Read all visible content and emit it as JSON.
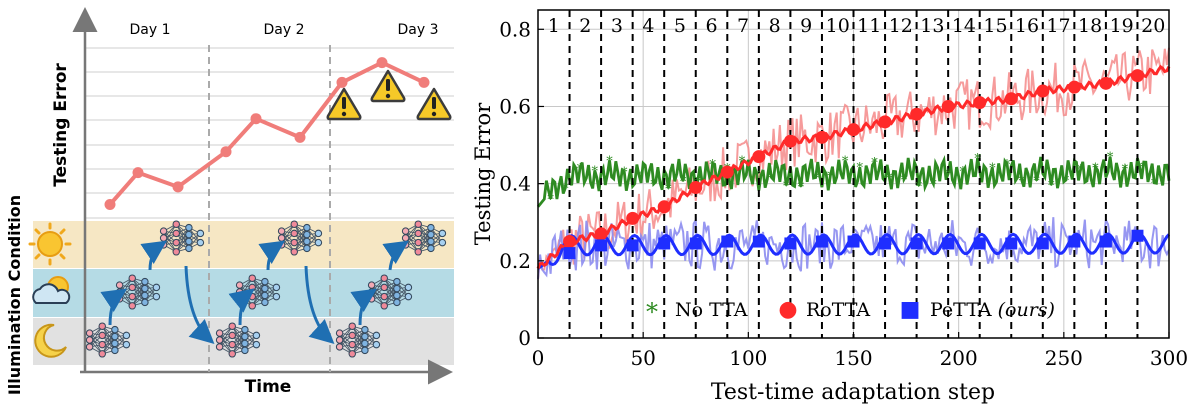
{
  "chart_data": [
    {
      "type": "line",
      "panel": "left",
      "xlabel": "Time",
      "ylabel": "Testing Error",
      "side_label": "Illumination Condition",
      "day_labels": [
        "Day 1",
        "Day 2",
        "Day 3"
      ],
      "values": [
        0.05,
        0.34,
        0.21,
        0.53,
        0.83,
        0.66,
        1.16,
        1.34,
        1.16
      ],
      "y_range": [
        0,
        1.5
      ],
      "warning_at_points": [
        6,
        7,
        8
      ],
      "illumination_bands": [
        "sunny",
        "partly-cloudy",
        "night"
      ],
      "line_color": "#f07d7a",
      "band_colors": {
        "sunny": "#f6e7c4",
        "partly-cloudy": "#b5dbe5",
        "night": "#e1e1e1"
      }
    },
    {
      "type": "line",
      "panel": "right",
      "xlabel": "Test-time adaptation step",
      "ylabel": "Testing Error",
      "xlim": [
        0,
        300
      ],
      "ylim": [
        0,
        0.85
      ],
      "x_ticks": [
        0,
        50,
        100,
        150,
        200,
        250,
        300
      ],
      "y_ticks": [
        0,
        0.2,
        0.4,
        0.6,
        0.8
      ],
      "x_tick_labels": [
        "0",
        "50",
        "100",
        "150",
        "200",
        "250",
        "300"
      ],
      "y_tick_labels": [
        "0",
        "0.2",
        "0.4",
        "0.6",
        "0.8"
      ],
      "grid": true,
      "segment_labels": [
        "1",
        "2",
        "3",
        "4",
        "5",
        "6",
        "7",
        "8",
        "9",
        "10",
        "11",
        "12",
        "13",
        "14",
        "15",
        "16",
        "17",
        "18",
        "19",
        "20"
      ],
      "segment_boundaries": [
        15,
        30,
        45,
        60,
        75,
        90,
        105,
        120,
        135,
        150,
        165,
        180,
        195,
        210,
        225,
        240,
        255,
        270,
        285
      ],
      "legend_placement": "bottom-center",
      "legend": [
        {
          "marker": "*",
          "label": "No TTA",
          "suffix": ""
        },
        {
          "marker": "●",
          "label": "RoTTA",
          "suffix": ""
        },
        {
          "marker": "■",
          "label": "PeTTA",
          "suffix": "(ours)"
        }
      ],
      "series": [
        {
          "name": "No TTA",
          "color": "#2e8b22",
          "base_x": [
            0,
            3,
            6,
            10,
            15,
            300
          ],
          "base_y": [
            0.34,
            0.36,
            0.38,
            0.4,
            0.42,
            0.43
          ],
          "oscillation": 0.03
        },
        {
          "name": "RoTTA",
          "color": "#ff2a2a",
          "raw_color": "#f58a8a",
          "x": [
            0,
            15,
            30,
            45,
            60,
            75,
            90,
            105,
            120,
            135,
            150,
            165,
            180,
            195,
            210,
            225,
            240,
            255,
            270,
            285,
            300
          ],
          "y": [
            0.18,
            0.25,
            0.27,
            0.31,
            0.34,
            0.39,
            0.43,
            0.47,
            0.51,
            0.52,
            0.54,
            0.56,
            0.58,
            0.6,
            0.61,
            0.62,
            0.64,
            0.65,
            0.66,
            0.68,
            0.7
          ],
          "marker_x": [
            15,
            30,
            45,
            60,
            75,
            90,
            105,
            120,
            135,
            150,
            165,
            180,
            195,
            210,
            225,
            240,
            255,
            270,
            285
          ],
          "raw_noise": 0.07
        },
        {
          "name": "PeTTA (ours)",
          "color": "#1f2eff",
          "raw_color": "#8c8cf0",
          "base_x": [
            0,
            5,
            12,
            300
          ],
          "base_y": [
            0.18,
            0.2,
            0.24,
            0.245
          ],
          "marker_x": [
            15,
            30,
            45,
            60,
            75,
            90,
            105,
            120,
            135,
            150,
            165,
            180,
            195,
            210,
            225,
            240,
            255,
            270,
            285
          ],
          "marker_y": [
            0.22,
            0.24,
            0.24,
            0.245,
            0.245,
            0.25,
            0.25,
            0.245,
            0.25,
            0.25,
            0.245,
            0.245,
            0.245,
            0.245,
            0.245,
            0.245,
            0.25,
            0.25,
            0.265
          ],
          "oscillation": 0.025,
          "raw_noise": 0.06
        }
      ]
    }
  ]
}
